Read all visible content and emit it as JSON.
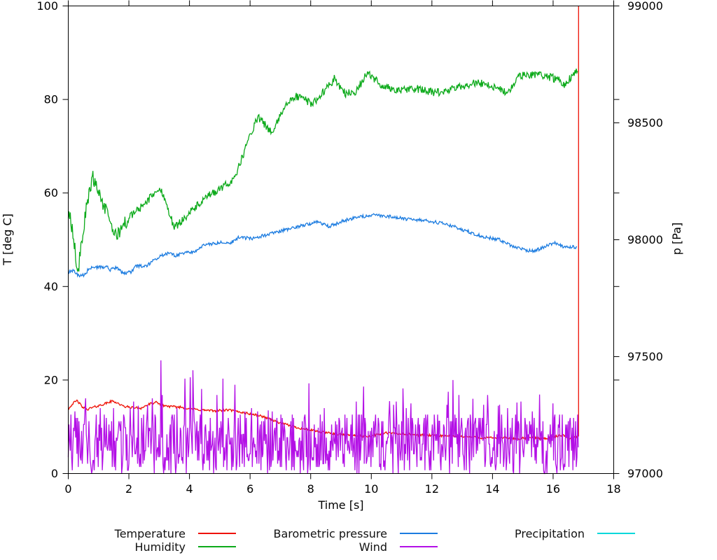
{
  "chart_data": {
    "type": "line",
    "title": "",
    "xlabel": "Time [s]",
    "ylabel": "T [deg C]",
    "y2label": "p [Pa]",
    "x_range": [
      0,
      18
    ],
    "x_ticks": [
      0,
      2,
      4,
      6,
      8,
      10,
      12,
      14,
      16,
      18
    ],
    "y_range": [
      0,
      100
    ],
    "y_ticks": [
      0,
      20,
      40,
      60,
      80,
      100
    ],
    "y2_range": [
      97000,
      99000
    ],
    "y2_ticks": [
      97000,
      97500,
      98000,
      98500,
      99000
    ],
    "grid": "off",
    "legend_position": "bottom",
    "data_end_x": 16.84,
    "noise_seed": 42,
    "series": [
      {
        "name": "Temperature",
        "color": "#ee1105",
        "axis": "left",
        "noise": 0.25,
        "end_spike": 100,
        "points": [
          [
            0,
            13.8
          ],
          [
            0.15,
            15
          ],
          [
            0.3,
            15.6
          ],
          [
            0.45,
            14.3
          ],
          [
            0.6,
            13.7
          ],
          [
            0.9,
            14.3
          ],
          [
            1.2,
            14.9
          ],
          [
            1.45,
            15.5
          ],
          [
            1.6,
            15.2
          ],
          [
            1.8,
            14.4
          ],
          [
            2.1,
            14.1
          ],
          [
            2.4,
            14
          ],
          [
            2.7,
            14.9
          ],
          [
            2.9,
            15.2
          ],
          [
            3.1,
            14.6
          ],
          [
            3.4,
            14.3
          ],
          [
            3.7,
            14.2
          ],
          [
            4.2,
            13.7
          ],
          [
            4.8,
            13.4
          ],
          [
            5.3,
            13.6
          ],
          [
            5.8,
            13
          ],
          [
            6.3,
            12.4
          ],
          [
            6.6,
            11.8
          ],
          [
            6.85,
            11.1
          ],
          [
            7.5,
            9.9
          ],
          [
            8.3,
            8.9
          ],
          [
            9.1,
            8.3
          ],
          [
            9.85,
            7.9
          ],
          [
            10.2,
            8.3
          ],
          [
            10.5,
            8.7
          ],
          [
            11.1,
            8.4
          ],
          [
            12.2,
            8.1
          ],
          [
            13.1,
            7.9
          ],
          [
            13.7,
            7.6
          ],
          [
            14.3,
            7.7
          ],
          [
            14.8,
            7.4
          ],
          [
            15.3,
            7.7
          ],
          [
            15.8,
            7.5
          ],
          [
            16.3,
            8.2
          ],
          [
            16.55,
            7.5
          ],
          [
            16.8,
            7.9
          ]
        ]
      },
      {
        "name": "Humidity",
        "color": "#0caa1a",
        "axis": "left",
        "noise": 0.85,
        "noise_early": {
          "until": 2,
          "amp": 1.5
        },
        "points": [
          [
            0,
            56
          ],
          [
            0.08,
            54
          ],
          [
            0.18,
            50
          ],
          [
            0.32,
            43
          ],
          [
            0.45,
            50
          ],
          [
            0.6,
            57
          ],
          [
            0.8,
            63.5
          ],
          [
            0.95,
            61.5
          ],
          [
            1.15,
            57.5
          ],
          [
            1.35,
            54.5
          ],
          [
            1.57,
            50.7
          ],
          [
            1.8,
            53
          ],
          [
            2.08,
            55.2
          ],
          [
            2.54,
            57.8
          ],
          [
            2.9,
            60.5
          ],
          [
            3.1,
            60.3
          ],
          [
            3.3,
            56.5
          ],
          [
            3.5,
            52.5
          ],
          [
            3.84,
            54.8
          ],
          [
            4.16,
            56.7
          ],
          [
            4.62,
            59.3
          ],
          [
            5.08,
            61.1
          ],
          [
            5.38,
            62.5
          ],
          [
            5.6,
            65
          ],
          [
            5.96,
            71.7
          ],
          [
            6.26,
            76.2
          ],
          [
            6.5,
            74.5
          ],
          [
            6.75,
            72.8
          ],
          [
            7.12,
            78.4
          ],
          [
            7.53,
            80.7
          ],
          [
            7.8,
            80
          ],
          [
            8.04,
            79
          ],
          [
            8.4,
            81.5
          ],
          [
            8.78,
            84.4
          ],
          [
            9.15,
            81.3
          ],
          [
            9.47,
            81.5
          ],
          [
            9.87,
            85.6
          ],
          [
            10.4,
            82.8
          ],
          [
            10.9,
            81.9
          ],
          [
            11.5,
            82.3
          ],
          [
            12.08,
            81.4
          ],
          [
            12.5,
            81.8
          ],
          [
            13,
            82.8
          ],
          [
            13.5,
            83.7
          ],
          [
            14,
            82.8
          ],
          [
            14.3,
            82
          ],
          [
            14.5,
            81.3
          ],
          [
            14.9,
            85
          ],
          [
            15.5,
            85.5
          ],
          [
            16.1,
            84.4
          ],
          [
            16.4,
            83.2
          ],
          [
            16.82,
            86.7
          ]
        ]
      },
      {
        "name": "Barometric pressure",
        "color": "#1c7ce0",
        "axis": "right",
        "noise": 7,
        "points": [
          [
            0,
            97862
          ],
          [
            0.18,
            97871
          ],
          [
            0.35,
            97845
          ],
          [
            0.53,
            97850
          ],
          [
            0.69,
            97877
          ],
          [
            1,
            97884
          ],
          [
            1.3,
            97883
          ],
          [
            1.39,
            97871
          ],
          [
            1.6,
            97880
          ],
          [
            1.8,
            97856
          ],
          [
            2.08,
            97862
          ],
          [
            2.2,
            97886
          ],
          [
            2.6,
            97888
          ],
          [
            2.77,
            97907
          ],
          [
            3.07,
            97931
          ],
          [
            3.37,
            97946
          ],
          [
            3.54,
            97931
          ],
          [
            3.84,
            97946
          ],
          [
            4.16,
            97949
          ],
          [
            4.46,
            97976
          ],
          [
            4.76,
            97982
          ],
          [
            5.08,
            97991
          ],
          [
            5.38,
            97988
          ],
          [
            5.61,
            98009
          ],
          [
            6.08,
            98006
          ],
          [
            6.54,
            98021
          ],
          [
            7.16,
            98042
          ],
          [
            7.76,
            98063
          ],
          [
            8.22,
            98075
          ],
          [
            8.61,
            98057
          ],
          [
            9.08,
            98081
          ],
          [
            9.54,
            98096
          ],
          [
            10.07,
            98105
          ],
          [
            10.62,
            98099
          ],
          [
            11.22,
            98087
          ],
          [
            11.85,
            98081
          ],
          [
            12.27,
            98072
          ],
          [
            12.71,
            98057
          ],
          [
            13.24,
            98033
          ],
          [
            13.63,
            98015
          ],
          [
            13.86,
            98009
          ],
          [
            14.23,
            98000
          ],
          [
            14.62,
            97973
          ],
          [
            15.08,
            97955
          ],
          [
            15.39,
            97952
          ],
          [
            15.94,
            97982
          ],
          [
            16.06,
            97985
          ],
          [
            16.4,
            97967
          ],
          [
            16.7,
            97970
          ],
          [
            16.8,
            97967
          ]
        ]
      },
      {
        "name": "Wind",
        "color": "#b30fe6",
        "axis": "left",
        "kind": "noise",
        "noise_band": {
          "dense_max": 5.5,
          "mid_max": 13,
          "quantum": 0.7
        },
        "spikes": [
          [
            0.55,
            13.5
          ],
          [
            1.05,
            14
          ],
          [
            1.5,
            14
          ],
          [
            2.3,
            14.5
          ],
          [
            3.05,
            24.2
          ],
          [
            3.85,
            20.3
          ],
          [
            4.02,
            20.6
          ],
          [
            4.11,
            22.1
          ],
          [
            4.41,
            18.1
          ],
          [
            5.11,
            20.3
          ],
          [
            5.5,
            19
          ],
          [
            6.05,
            14
          ],
          [
            6.6,
            13.5
          ],
          [
            7.95,
            19.3
          ],
          [
            8.45,
            14
          ],
          [
            9.75,
            18.6
          ],
          [
            10.6,
            15.5
          ],
          [
            11.3,
            15
          ],
          [
            12.55,
            17.5
          ],
          [
            12.7,
            20
          ],
          [
            12.9,
            16.8
          ],
          [
            13.35,
            16
          ],
          [
            14.2,
            14.5
          ],
          [
            14.8,
            15.2
          ],
          [
            15.55,
            16.9
          ],
          [
            16,
            15
          ]
        ]
      },
      {
        "name": "Precipitation",
        "color": "#06d8db",
        "axis": "left",
        "noise": 0,
        "points": []
      }
    ]
  }
}
